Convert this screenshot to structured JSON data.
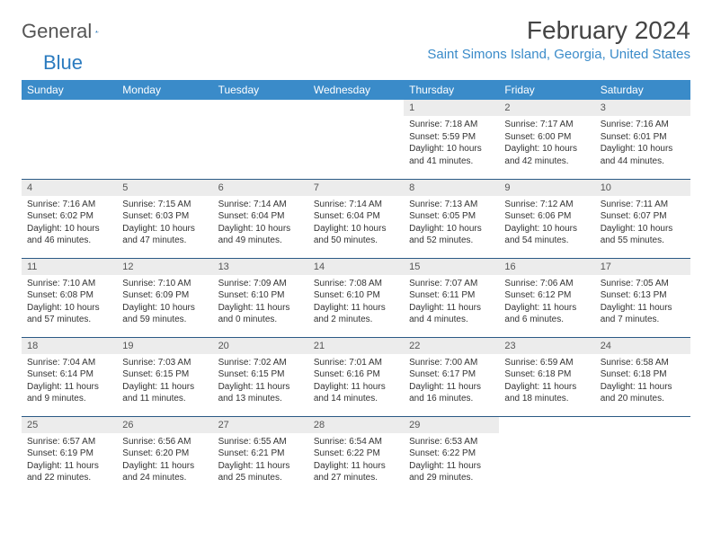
{
  "brand": {
    "name1": "General",
    "name2": "Blue"
  },
  "title": "February 2024",
  "location": "Saint Simons Island, Georgia, United States",
  "colors": {
    "header_bg": "#3a8bc9",
    "header_text": "#ffffff",
    "daynum_bg": "#ececec",
    "row_border": "#2b5a85",
    "brand_gray": "#555555",
    "brand_blue": "#2b7bbf",
    "location_color": "#3a8bc9",
    "body_text": "#333333"
  },
  "weekdays": [
    "Sunday",
    "Monday",
    "Tuesday",
    "Wednesday",
    "Thursday",
    "Friday",
    "Saturday"
  ],
  "weeks": [
    [
      null,
      null,
      null,
      null,
      {
        "n": "1",
        "sr": "7:18 AM",
        "ss": "5:59 PM",
        "dl": "10 hours and 41 minutes."
      },
      {
        "n": "2",
        "sr": "7:17 AM",
        "ss": "6:00 PM",
        "dl": "10 hours and 42 minutes."
      },
      {
        "n": "3",
        "sr": "7:16 AM",
        "ss": "6:01 PM",
        "dl": "10 hours and 44 minutes."
      }
    ],
    [
      {
        "n": "4",
        "sr": "7:16 AM",
        "ss": "6:02 PM",
        "dl": "10 hours and 46 minutes."
      },
      {
        "n": "5",
        "sr": "7:15 AM",
        "ss": "6:03 PM",
        "dl": "10 hours and 47 minutes."
      },
      {
        "n": "6",
        "sr": "7:14 AM",
        "ss": "6:04 PM",
        "dl": "10 hours and 49 minutes."
      },
      {
        "n": "7",
        "sr": "7:14 AM",
        "ss": "6:04 PM",
        "dl": "10 hours and 50 minutes."
      },
      {
        "n": "8",
        "sr": "7:13 AM",
        "ss": "6:05 PM",
        "dl": "10 hours and 52 minutes."
      },
      {
        "n": "9",
        "sr": "7:12 AM",
        "ss": "6:06 PM",
        "dl": "10 hours and 54 minutes."
      },
      {
        "n": "10",
        "sr": "7:11 AM",
        "ss": "6:07 PM",
        "dl": "10 hours and 55 minutes."
      }
    ],
    [
      {
        "n": "11",
        "sr": "7:10 AM",
        "ss": "6:08 PM",
        "dl": "10 hours and 57 minutes."
      },
      {
        "n": "12",
        "sr": "7:10 AM",
        "ss": "6:09 PM",
        "dl": "10 hours and 59 minutes."
      },
      {
        "n": "13",
        "sr": "7:09 AM",
        "ss": "6:10 PM",
        "dl": "11 hours and 0 minutes."
      },
      {
        "n": "14",
        "sr": "7:08 AM",
        "ss": "6:10 PM",
        "dl": "11 hours and 2 minutes."
      },
      {
        "n": "15",
        "sr": "7:07 AM",
        "ss": "6:11 PM",
        "dl": "11 hours and 4 minutes."
      },
      {
        "n": "16",
        "sr": "7:06 AM",
        "ss": "6:12 PM",
        "dl": "11 hours and 6 minutes."
      },
      {
        "n": "17",
        "sr": "7:05 AM",
        "ss": "6:13 PM",
        "dl": "11 hours and 7 minutes."
      }
    ],
    [
      {
        "n": "18",
        "sr": "7:04 AM",
        "ss": "6:14 PM",
        "dl": "11 hours and 9 minutes."
      },
      {
        "n": "19",
        "sr": "7:03 AM",
        "ss": "6:15 PM",
        "dl": "11 hours and 11 minutes."
      },
      {
        "n": "20",
        "sr": "7:02 AM",
        "ss": "6:15 PM",
        "dl": "11 hours and 13 minutes."
      },
      {
        "n": "21",
        "sr": "7:01 AM",
        "ss": "6:16 PM",
        "dl": "11 hours and 14 minutes."
      },
      {
        "n": "22",
        "sr": "7:00 AM",
        "ss": "6:17 PM",
        "dl": "11 hours and 16 minutes."
      },
      {
        "n": "23",
        "sr": "6:59 AM",
        "ss": "6:18 PM",
        "dl": "11 hours and 18 minutes."
      },
      {
        "n": "24",
        "sr": "6:58 AM",
        "ss": "6:18 PM",
        "dl": "11 hours and 20 minutes."
      }
    ],
    [
      {
        "n": "25",
        "sr": "6:57 AM",
        "ss": "6:19 PM",
        "dl": "11 hours and 22 minutes."
      },
      {
        "n": "26",
        "sr": "6:56 AM",
        "ss": "6:20 PM",
        "dl": "11 hours and 24 minutes."
      },
      {
        "n": "27",
        "sr": "6:55 AM",
        "ss": "6:21 PM",
        "dl": "11 hours and 25 minutes."
      },
      {
        "n": "28",
        "sr": "6:54 AM",
        "ss": "6:22 PM",
        "dl": "11 hours and 27 minutes."
      },
      {
        "n": "29",
        "sr": "6:53 AM",
        "ss": "6:22 PM",
        "dl": "11 hours and 29 minutes."
      },
      null,
      null
    ]
  ],
  "labels": {
    "sunrise": "Sunrise: ",
    "sunset": "Sunset: ",
    "daylight": "Daylight: "
  }
}
